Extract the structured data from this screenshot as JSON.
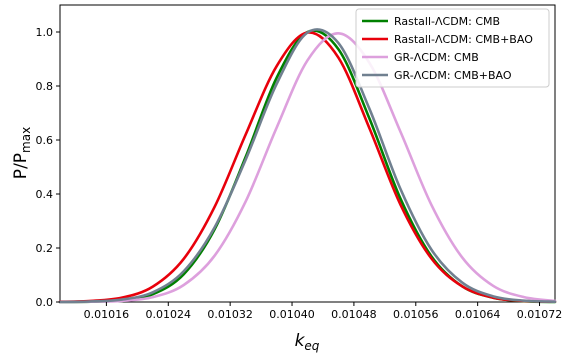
{
  "chart_data": {
    "type": "line",
    "xlabel": "k",
    "xlabel_sub": "eq",
    "ylabel": "P/P",
    "ylabel_sub": "max",
    "xlim": [
      0.0101,
      0.01074
    ],
    "ylim": [
      0.0,
      1.1
    ],
    "xticks": [
      0.01016,
      0.01024,
      0.01032,
      0.0104,
      0.01048,
      0.01056,
      0.01064,
      0.01072
    ],
    "xtick_labels": [
      "0.01016",
      "0.01024",
      "0.01032",
      "0.01040",
      "0.01048",
      "0.01056",
      "0.01064",
      "0.01072"
    ],
    "yticks": [
      0.0,
      0.2,
      0.4,
      0.6,
      0.8,
      1.0
    ],
    "ytick_labels": [
      "0.0",
      "0.2",
      "0.4",
      "0.6",
      "0.8",
      "1.0"
    ],
    "grid": false,
    "legend_position": "top-right",
    "series": [
      {
        "name": "Rastall-ΛCDM: CMB",
        "color": "#008000",
        "x": [
          0.0101,
          0.01014,
          0.01018,
          0.01022,
          0.01026,
          0.0103,
          0.01034,
          0.01038,
          0.01042,
          0.01046,
          0.0105,
          0.01054,
          0.01058,
          0.01062,
          0.01066,
          0.0107,
          0.01074
        ],
        "y": [
          0.0,
          0.001,
          0.006,
          0.029,
          0.103,
          0.27,
          0.537,
          0.83,
          1.0,
          0.936,
          0.68,
          0.384,
          0.17,
          0.058,
          0.016,
          0.003,
          0.0
        ]
      },
      {
        "name": "Rastall-ΛCDM: CMB+BAO",
        "color": "#e8000b",
        "x": [
          0.0101,
          0.01014,
          0.01018,
          0.01022,
          0.01026,
          0.0103,
          0.01034,
          0.01038,
          0.01042,
          0.01046,
          0.0105,
          0.01054,
          0.01058,
          0.01062,
          0.01066,
          0.0107,
          0.01074
        ],
        "y": [
          0.001,
          0.004,
          0.016,
          0.057,
          0.16,
          0.353,
          0.62,
          0.873,
          0.998,
          0.905,
          0.644,
          0.362,
          0.162,
          0.058,
          0.016,
          0.004,
          0.001
        ]
      },
      {
        "name": "GR-ΛCDM: CMB",
        "color": "#dda0dd",
        "x": [
          0.0101,
          0.01014,
          0.01018,
          0.01022,
          0.01026,
          0.0103,
          0.01034,
          0.01038,
          0.01042,
          0.01046,
          0.0105,
          0.01054,
          0.01058,
          0.01062,
          0.01066,
          0.0107,
          0.01074
        ],
        "y": [
          0.0,
          0.001,
          0.004,
          0.018,
          0.063,
          0.172,
          0.372,
          0.645,
          0.895,
          0.995,
          0.886,
          0.632,
          0.361,
          0.165,
          0.06,
          0.018,
          0.004
        ]
      },
      {
        "name": "GR-ΛCDM: CMB+BAO",
        "color": "#708090",
        "x": [
          0.0101,
          0.01014,
          0.01018,
          0.01022,
          0.01026,
          0.0103,
          0.01034,
          0.01038,
          0.01042,
          0.01046,
          0.0105,
          0.01054,
          0.01058,
          0.01062,
          0.01066,
          0.0107,
          0.01074
        ],
        "y": [
          0.0,
          0.002,
          0.009,
          0.036,
          0.114,
          0.277,
          0.527,
          0.807,
          0.998,
          0.959,
          0.716,
          0.42,
          0.195,
          0.072,
          0.021,
          0.005,
          0.001
        ]
      }
    ]
  }
}
